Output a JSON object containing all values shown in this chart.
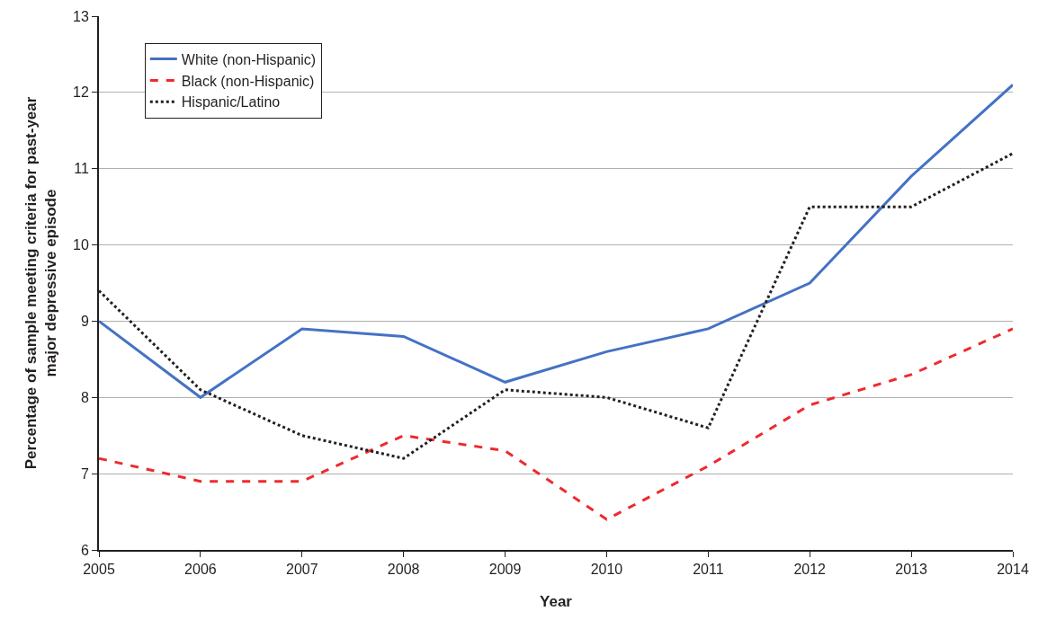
{
  "chart_data": {
    "type": "line",
    "xlabel": "Year",
    "ylabel": "Percentage of sample meeting criteria for past-year major depressive episode",
    "x": [
      2005,
      2006,
      2007,
      2008,
      2009,
      2010,
      2011,
      2012,
      2013,
      2014
    ],
    "series": [
      {
        "name": "White (non-Hispanic)",
        "color": "#4472c4",
        "line_style": "solid",
        "values": [
          9.0,
          8.0,
          8.9,
          8.8,
          8.2,
          8.6,
          8.9,
          9.5,
          10.9,
          12.1
        ]
      },
      {
        "name": "Black (non-Hispanic)",
        "color": "#ee2a2f",
        "line_style": "dashed",
        "values": [
          7.2,
          6.9,
          6.9,
          7.5,
          7.3,
          6.4,
          7.1,
          7.9,
          8.3,
          8.9
        ]
      },
      {
        "name": "Hispanic/Latino",
        "color": "#231f20",
        "line_style": "dotted",
        "values": [
          9.4,
          8.1,
          7.5,
          7.2,
          8.1,
          8.0,
          7.6,
          10.5,
          10.5,
          11.2
        ]
      }
    ],
    "xlim": [
      2005,
      2014
    ],
    "xticks": [
      2005,
      2006,
      2007,
      2008,
      2009,
      2010,
      2011,
      2012,
      2013,
      2014
    ],
    "ylim": [
      6,
      13
    ],
    "yticks": [
      6,
      7,
      8,
      9,
      10,
      11,
      12,
      13
    ],
    "grid": "y",
    "legend": "top left",
    "marker": "none"
  }
}
